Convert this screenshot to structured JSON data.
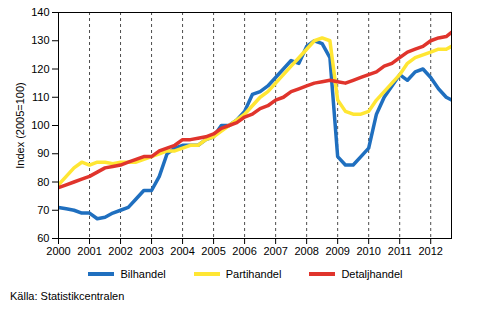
{
  "chart_data": {
    "type": "line",
    "y_label": "Index (2005=100)",
    "source": "Källa: Statistikcentralen",
    "x": [
      2000,
      2000.25,
      2000.5,
      2000.75,
      2001,
      2001.25,
      2001.5,
      2001.75,
      2002,
      2002.25,
      2002.5,
      2002.75,
      2003,
      2003.25,
      2003.5,
      2003.75,
      2004,
      2004.25,
      2004.5,
      2004.75,
      2005,
      2005.25,
      2005.5,
      2005.75,
      2006,
      2006.25,
      2006.5,
      2006.75,
      2007,
      2007.25,
      2007.5,
      2007.75,
      2008,
      2008.25,
      2008.5,
      2008.75,
      2009,
      2009.25,
      2009.5,
      2009.75,
      2010,
      2010.25,
      2010.5,
      2010.75,
      2011,
      2011.25,
      2011.5,
      2011.75,
      2012,
      2012.25,
      2012.5,
      2012.67
    ],
    "series": [
      {
        "name": "Bilhandel",
        "color": "#1f6fbf",
        "values": [
          71,
          70.5,
          70,
          69,
          69,
          67,
          67.5,
          69,
          70,
          71,
          74,
          77,
          77,
          82,
          90,
          92,
          93,
          93,
          93,
          95,
          96,
          100,
          100,
          102,
          105,
          111,
          112,
          114,
          117,
          120,
          123,
          122,
          128,
          130,
          129,
          124,
          89,
          86,
          86,
          89,
          92,
          104,
          110,
          114,
          118,
          116,
          119,
          120,
          117,
          113,
          110,
          109
        ]
      },
      {
        "name": "Partihandel",
        "color": "#ffe633",
        "values": [
          79,
          82,
          85,
          87,
          86,
          87,
          87,
          86.5,
          87,
          87,
          87,
          88,
          89,
          90,
          91,
          91,
          92,
          93,
          93,
          95,
          96,
          98,
          100,
          102,
          104,
          107,
          110,
          112,
          115,
          118,
          121,
          124,
          127,
          130,
          131,
          130,
          109,
          105,
          104,
          104,
          105,
          109,
          112,
          115,
          118,
          122,
          124,
          125,
          126,
          127,
          127,
          128
        ]
      },
      {
        "name": "Detaljhandel",
        "color": "#e0342c",
        "values": [
          78,
          79,
          80,
          81,
          82,
          83.5,
          85,
          85.5,
          86,
          87,
          88,
          89,
          89,
          91,
          92,
          93,
          95,
          95,
          95.5,
          96,
          97,
          99,
          100,
          101,
          103,
          104,
          106,
          107,
          109,
          110,
          112,
          113,
          114,
          115,
          115.5,
          116,
          115.5,
          115,
          116,
          117,
          118,
          119,
          121,
          122,
          124,
          126,
          127,
          128,
          130,
          131,
          131.5,
          133
        ]
      }
    ],
    "xlim": [
      2000,
      2012.67
    ],
    "xticks": [
      2000,
      2001,
      2002,
      2003,
      2004,
      2005,
      2006,
      2007,
      2008,
      2009,
      2010,
      2011,
      2012
    ],
    "ylim": [
      60,
      140
    ],
    "yticks": [
      60,
      70,
      80,
      90,
      100,
      110,
      120,
      130,
      140
    ],
    "grid": "x",
    "legend": "bottom"
  }
}
